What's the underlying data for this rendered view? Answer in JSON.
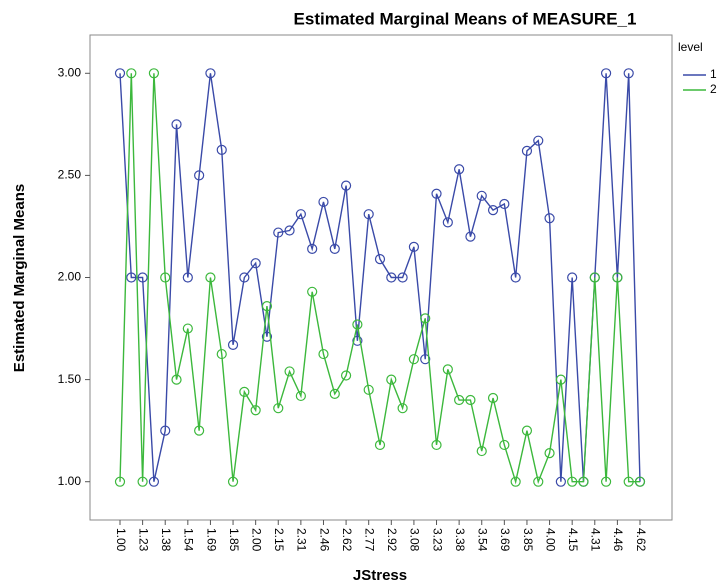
{
  "chart_data": {
    "type": "line",
    "title": "Estimated Marginal Means of MEASURE_1",
    "x_label": "JStress",
    "y_label": "Estimated Marginal Means",
    "legend_title": "level",
    "categories": [
      "1.00",
      null,
      "1.23",
      null,
      "1.38",
      null,
      "1.54",
      null,
      "1.69",
      null,
      "1.85",
      null,
      "2.00",
      null,
      "2.15",
      null,
      "2.31",
      null,
      "2.46",
      null,
      "2.62",
      null,
      "2.77",
      null,
      "2.92",
      null,
      "3.08",
      null,
      "3.23",
      null,
      "3.38",
      null,
      "3.54",
      null,
      "3.69",
      null,
      "3.85",
      null,
      "4.00",
      null,
      "4.15",
      null,
      "4.31",
      null,
      "4.46",
      null,
      "4.62"
    ],
    "series": [
      {
        "name": "1",
        "color": "#3a4aa8",
        "values": [
          3.0,
          2.0,
          2.0,
          1.0,
          1.25,
          2.75,
          2.0,
          2.5,
          3.0,
          2.625,
          1.67,
          2.0,
          2.07,
          1.71,
          2.22,
          2.23,
          2.31,
          2.14,
          2.37,
          2.14,
          2.45,
          1.69,
          2.31,
          2.09,
          2.0,
          2.0,
          2.15,
          1.6,
          2.41,
          2.27,
          2.53,
          2.2,
          2.4,
          2.33,
          2.36,
          2.0,
          2.62,
          2.67,
          2.29,
          1.0,
          2.0,
          1.0,
          2.0,
          3.0,
          2.0,
          3.0,
          1.0
        ]
      },
      {
        "name": "2",
        "color": "#3cb83c",
        "values": [
          1.0,
          3.0,
          1.0,
          3.0,
          2.0,
          1.5,
          1.75,
          1.25,
          2.0,
          1.625,
          1.0,
          1.44,
          1.35,
          1.86,
          1.36,
          1.54,
          1.42,
          1.93,
          1.625,
          1.43,
          1.52,
          1.77,
          1.45,
          1.18,
          1.5,
          1.36,
          1.6,
          1.8,
          1.18,
          1.55,
          1.4,
          1.4,
          1.15,
          1.41,
          1.18,
          1.0,
          1.25,
          1.0,
          1.14,
          1.5,
          1.0,
          1.0,
          2.0,
          1.0,
          2.0,
          1.0,
          1.0
        ]
      }
    ],
    "ylim": [
      0.8125,
      3.1875
    ],
    "yticks": [
      {
        "value": 1,
        "label": "1.00"
      },
      {
        "value": 1.5,
        "label": "1.50"
      },
      {
        "value": 2,
        "label": "2.00"
      },
      {
        "value": 2.5,
        "label": "2.50"
      },
      {
        "value": 3,
        "label": "3.00"
      }
    ],
    "legend_position": "right"
  }
}
